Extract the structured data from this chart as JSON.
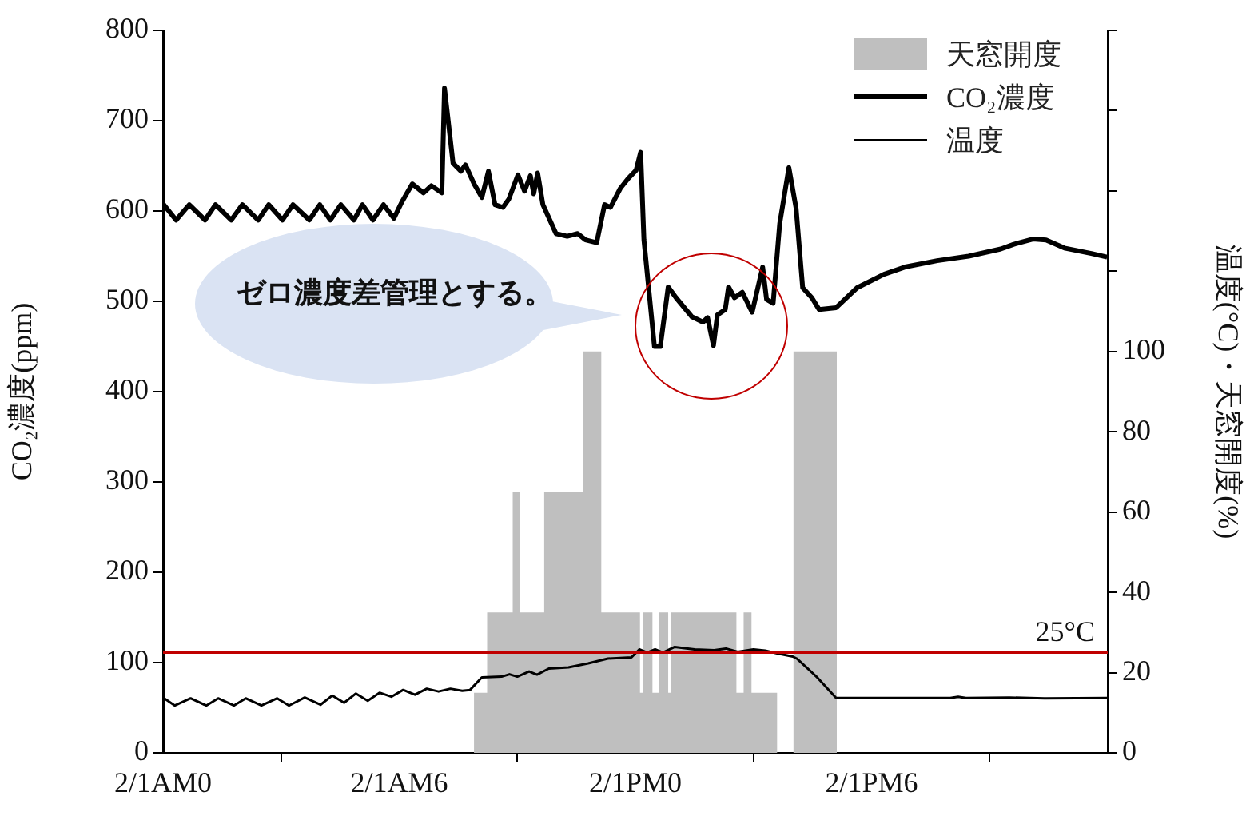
{
  "chart_data": {
    "type": "line",
    "ylabel": "CO₂濃度(ppm)",
    "y2label": "温度(°C)・天窓開度(%)",
    "xlim": [
      "--02-01T00:00",
      "--02-02T00:00"
    ],
    "xticks": [
      {
        "value": "--02-01T00:00",
        "label": "2/1AM0"
      },
      {
        "value": "--02-01T06:00",
        "label": "2/1AM6"
      },
      {
        "value": "--02-01T12:00",
        "label": "2/1PM0"
      },
      {
        "value": "--02-01T18:00",
        "label": "2/1PM6"
      },
      {
        "value": "--02-02T00:00",
        "label": null
      }
    ],
    "ylim": [
      0,
      800
    ],
    "yticks": [
      0,
      100,
      200,
      300,
      400,
      500,
      600,
      700,
      800
    ],
    "y2lim": [
      0,
      180
    ],
    "y2ticks": [
      0,
      20,
      40,
      60,
      80,
      100,
      {
        "value": 120,
        "label": null
      },
      {
        "value": 140,
        "label": null
      },
      {
        "value": 160,
        "label": null
      },
      {
        "value": 180,
        "label": null
      }
    ],
    "legend": "top right",
    "series": [
      {
        "name": "天窓開度",
        "type": "area",
        "axis": "y2",
        "color": "#bfbfbf",
        "x": [
          "--02-01T07:54",
          "--02-01T07:54",
          "--02-01T08:14",
          "--02-01T08:14",
          "--02-01T08:53",
          "--02-01T08:53",
          "--02-01T09:04",
          "--02-01T09:04",
          "--02-01T09:41",
          "--02-01T09:41",
          "--02-01T10:40",
          "--02-01T10:40",
          "--02-01T11:08",
          "--02-01T11:08",
          "--02-01T12:07",
          "--02-01T12:07",
          "--02-01T12:12",
          "--02-01T12:12",
          "--02-01T12:26",
          "--02-01T12:26",
          "--02-01T12:36",
          "--02-01T12:36",
          "--02-01T12:50",
          "--02-01T12:50",
          "--02-01T12:54",
          "--02-01T12:54",
          "--02-01T14:34",
          "--02-01T14:34",
          "--02-01T14:45",
          "--02-01T14:45",
          "--02-01T14:57",
          "--02-01T14:57",
          "--02-01T15:36",
          "--02-01T15:36",
          "--02-01T16:01",
          "--02-01T16:01",
          "--02-01T17:07",
          "--02-01T17:07"
        ],
        "values": [
          0,
          15,
          15,
          35,
          35,
          65,
          65,
          35,
          35,
          65,
          65,
          100,
          100,
          35,
          35,
          15,
          15,
          35,
          35,
          15,
          15,
          35,
          35,
          15,
          15,
          35,
          35,
          15,
          15,
          35,
          35,
          15,
          15,
          0,
          0,
          100,
          100,
          0
        ]
      },
      {
        "name": "CO₂濃度",
        "color": "#000000",
        "x": [
          "--02-01T00:00",
          "--02-01T00:20",
          "--02-01T00:40",
          "--02-01T01:04",
          "--02-01T01:20",
          "--02-01T01:44",
          "--02-01T02:01",
          "--02-01T02:25",
          "--02-01T02:41",
          "--02-01T03:02",
          "--02-01T03:18",
          "--02-01T03:43",
          "--02-01T03:59",
          "--02-01T04:15",
          "--02-01T04:31",
          "--02-01T04:51",
          "--02-01T05:04",
          "--02-01T05:20",
          "--02-01T05:36",
          "--02-01T05:52",
          "--02-01T06:04",
          "--02-01T06:20",
          "--02-01T06:37",
          "--02-01T06:49",
          "--02-01T07:05",
          "--02-01T07:09",
          "--02-01T07:22",
          "--02-01T07:34",
          "--02-01T07:41",
          "--02-01T07:54",
          "--02-01T08:06",
          "--02-01T08:16",
          "--02-01T08:26",
          "--02-01T08:38",
          "--02-01T08:47",
          "--02-01T09:01",
          "--02-01T09:11",
          "--02-01T09:20",
          "--02-01T09:25",
          "--02-01T09:31",
          "--02-01T09:39",
          "--02-01T09:59",
          "--02-01T10:16",
          "--02-01T10:32",
          "--02-01T10:44",
          "--02-01T11:01",
          "--02-01T11:13",
          "--02-01T11:22",
          "--02-01T11:37",
          "--02-01T11:49",
          "--02-01T12:01",
          "--02-01T12:08",
          "--02-01T12:13",
          "--02-01T12:29",
          "--02-01T12:38",
          "--02-01T12:50",
          "--02-01T13:02",
          "--02-01T13:26",
          "--02-01T13:43",
          "--02-01T13:50",
          "--02-01T13:59",
          "--02-01T14:05",
          "--02-01T14:17",
          "--02-01T14:22",
          "--02-01T14:31",
          "--02-01T14:43",
          "--02-01T14:58",
          "--02-01T15:14",
          "--02-01T15:20",
          "--02-01T15:30",
          "--02-01T15:40",
          "--02-01T15:54",
          "--02-01T16:05",
          "--02-01T16:15",
          "--02-01T16:29",
          "--02-01T16:40",
          "--02-01T17:06",
          "--02-01T17:38",
          "--02-01T18:19",
          "--02-01T18:51",
          "--02-01T19:40",
          "--02-01T20:28",
          "--02-01T21:17",
          "--02-01T21:36",
          "--02-01T22:06",
          "--02-01T22:26",
          "--02-01T22:54",
          "--02-01T23:35",
          "--02-01T23:59"
        ],
        "values": [
          608,
          590,
          607,
          590,
          607,
          590,
          607,
          590,
          607,
          590,
          607,
          590,
          607,
          590,
          607,
          590,
          607,
          590,
          607,
          592,
          610,
          630,
          620,
          628,
          620,
          736,
          653,
          644,
          651,
          630,
          615,
          644,
          607,
          604,
          613,
          640,
          622,
          639,
          619,
          642,
          607,
          575,
          572,
          575,
          568,
          565,
          607,
          604,
          625,
          636,
          645,
          665,
          568,
          450,
          450,
          516,
          504,
          483,
          477,
          482,
          451,
          485,
          491,
          516,
          504,
          510,
          488,
          538,
          502,
          498,
          586,
          648,
          603,
          515,
          504,
          491,
          493,
          515,
          530,
          538,
          545,
          550,
          558,
          563,
          569,
          568,
          559,
          553,
          549
        ]
      },
      {
        "name": "温度",
        "axis": "y2",
        "color": "#000000",
        "x": [
          "--02-01T00:00",
          "--02-01T00:18",
          "--02-01T00:42",
          "--02-01T01:06",
          "--02-01T01:24",
          "--02-01T01:48",
          "--02-01T02:06",
          "--02-01T02:30",
          "--02-01T02:54",
          "--02-01T03:12",
          "--02-01T03:36",
          "--02-01T04:00",
          "--02-01T04:18",
          "--02-01T04:36",
          "--02-01T04:54",
          "--02-01T05:12",
          "--02-01T05:30",
          "--02-01T05:48",
          "--02-01T06:06",
          "--02-01T06:24",
          "--02-01T06:42",
          "--02-01T07:00",
          "--02-01T07:18",
          "--02-01T07:36",
          "--02-01T07:48",
          "--02-01T08:06",
          "--02-01T08:36",
          "--02-01T08:48",
          "--02-01T09:00",
          "--02-01T09:18",
          "--02-01T09:30",
          "--02-01T09:48",
          "--02-01T10:18",
          "--02-01T10:48",
          "--02-01T11:18",
          "--02-01T11:54",
          "--02-01T12:06",
          "--02-01T12:18",
          "--02-01T12:30",
          "--02-01T12:42",
          "--02-01T13:00",
          "--02-01T13:30",
          "--02-01T14:00",
          "--02-01T14:18",
          "--02-01T14:36",
          "--02-01T15:00",
          "--02-01T15:18",
          "--02-01T15:36",
          "--02-01T16:00",
          "--02-01T16:06",
          "--02-01T16:36",
          "--02-01T17:06",
          "--02-01T20:00",
          "--02-01T20:12",
          "--02-01T20:24",
          "--02-01T21:30",
          "--02-01T22:24",
          "--02-02T00:00"
        ],
        "values": [
          13.8,
          11.8,
          13.6,
          11.8,
          13.6,
          11.8,
          13.6,
          11.8,
          13.6,
          11.8,
          13.8,
          12,
          14.3,
          12.5,
          14.8,
          13,
          15,
          14,
          15.7,
          14.5,
          16,
          15.3,
          16,
          15.5,
          15.7,
          18.8,
          19,
          19.6,
          19,
          20.3,
          19.5,
          21,
          21.3,
          22.3,
          23.5,
          23.8,
          25.8,
          25,
          25.8,
          25,
          26.4,
          25.8,
          25.6,
          26,
          25.2,
          25.8,
          25.5,
          24.8,
          24,
          23.5,
          19,
          13.7,
          13.7,
          14,
          13.7,
          13.8,
          13.6,
          13.7
        ]
      }
    ],
    "ref_lines": [
      {
        "axis": "y2",
        "value": 25,
        "label": "25°C",
        "color": "#c00000"
      }
    ],
    "annotations": [
      "ゼロ濃度差管理とする。"
    ]
  }
}
